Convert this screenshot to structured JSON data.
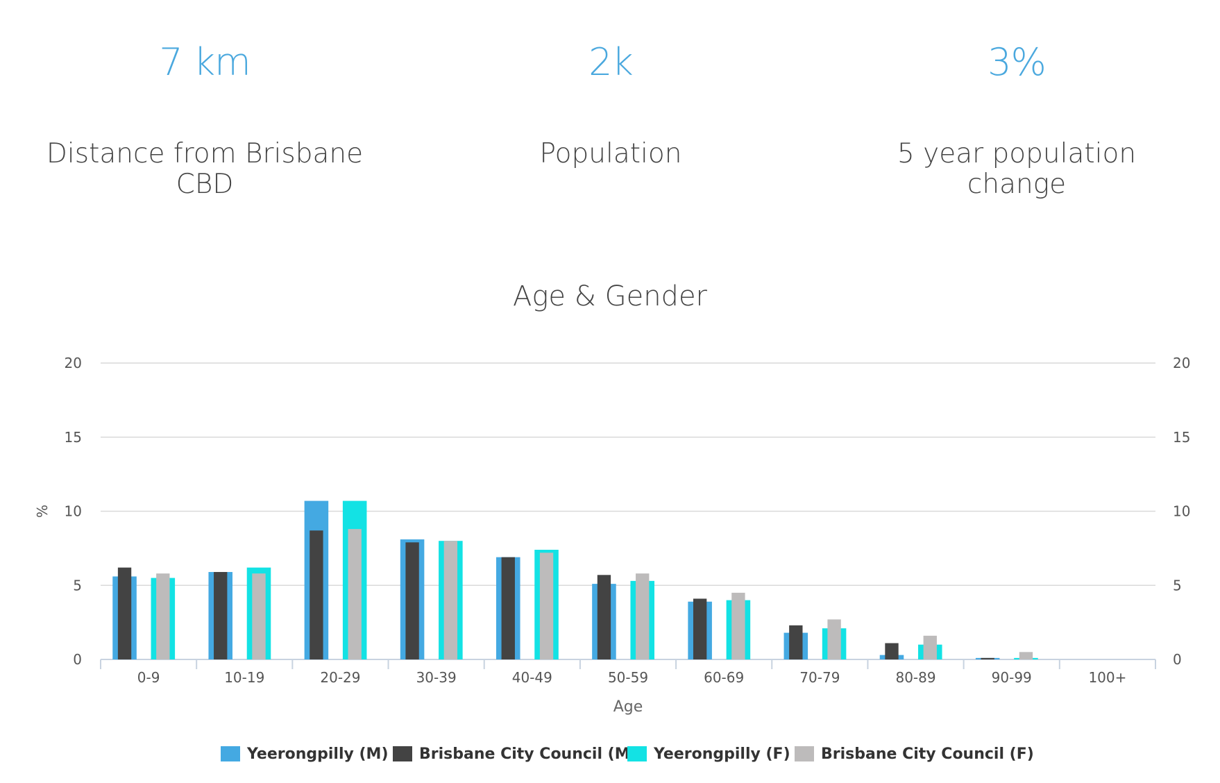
{
  "stats": [
    {
      "value": "7 km",
      "label_line1": "Distance from Brisbane",
      "label_line2": "CBD"
    },
    {
      "value": "2k",
      "label_line1": "Population",
      "label_line2": ""
    },
    {
      "value": "3%",
      "label_line1": "5 year population",
      "label_line2": "change"
    }
  ],
  "chart_data": {
    "type": "bar",
    "title": "Age & Gender",
    "xlabel": "Age",
    "ylabel": "%",
    "ylim": [
      0,
      20
    ],
    "yticks": [
      0,
      5,
      10,
      15,
      20
    ],
    "right_axis": true,
    "grid": true,
    "legend_position": "bottom",
    "categories": [
      "0-9",
      "10-19",
      "20-29",
      "30-39",
      "40-49",
      "50-59",
      "60-69",
      "70-79",
      "80-89",
      "90-99",
      "100+"
    ],
    "series": [
      {
        "name": "Yeerongpilly (M)",
        "color": "#44a9e2",
        "values": [
          5.6,
          5.9,
          10.7,
          8.1,
          6.9,
          5.1,
          3.9,
          1.8,
          0.3,
          0.1,
          0
        ]
      },
      {
        "name": "Brisbane City Council (M)",
        "color": "#434343",
        "values": [
          6.2,
          5.9,
          8.7,
          7.9,
          6.9,
          5.7,
          4.1,
          2.3,
          1.1,
          0.1,
          0
        ]
      },
      {
        "name": "Yeerongpilly (F)",
        "color": "#13e2e4",
        "values": [
          5.5,
          6.2,
          10.7,
          8.0,
          7.4,
          5.3,
          4.0,
          2.1,
          1.0,
          0.1,
          0
        ]
      },
      {
        "name": "Brisbane City Council (F)",
        "color": "#bdbbbb",
        "values": [
          5.8,
          5.8,
          8.8,
          8.0,
          7.2,
          5.8,
          4.5,
          2.7,
          1.6,
          0.5,
          0
        ]
      }
    ]
  }
}
